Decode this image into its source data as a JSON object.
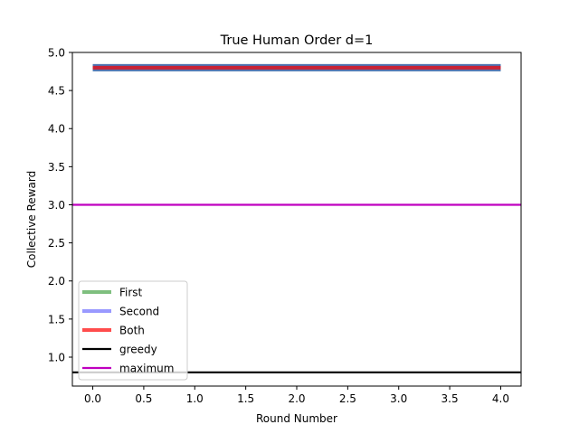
{
  "chart_data": {
    "type": "line",
    "title": "True Human Order d=1",
    "xlabel": "Round Number",
    "ylabel": "Collective Reward",
    "xlim": [
      -0.2,
      4.2
    ],
    "ylim": [
      0.62,
      5.0
    ],
    "xticks": [
      0.0,
      0.5,
      1.0,
      1.5,
      2.0,
      2.5,
      3.0,
      3.5,
      4.0
    ],
    "xtick_labels": [
      "0.0",
      "0.5",
      "1.0",
      "1.5",
      "2.0",
      "2.5",
      "3.0",
      "3.5",
      "4.0"
    ],
    "yticks": [
      1.0,
      1.5,
      2.0,
      2.5,
      3.0,
      3.5,
      4.0,
      4.5,
      5.0
    ],
    "ytick_labels": [
      "1.0",
      "1.5",
      "2.0",
      "2.5",
      "3.0",
      "3.5",
      "4.0",
      "4.5",
      "5.0"
    ],
    "grid": false,
    "legend_position": "lower-left",
    "x": [
      0,
      1,
      2,
      3,
      4
    ],
    "series": [
      {
        "name": "First",
        "values": [
          4.8,
          4.8,
          4.8,
          4.8,
          4.8
        ],
        "color": "#008000",
        "opacity": 0.5
      },
      {
        "name": "Second",
        "values": [
          4.8,
          4.8,
          4.8,
          4.8,
          4.8
        ],
        "color": "#0000ff",
        "opacity": 0.4
      },
      {
        "name": "Both",
        "values": [
          4.8,
          4.8,
          4.8,
          4.8,
          4.8
        ],
        "color": "#ff0000",
        "opacity": 0.7
      }
    ],
    "reference_lines": [
      {
        "name": "greedy",
        "y": 0.8,
        "color": "#000000"
      },
      {
        "name": "maximum",
        "y": 3.0,
        "color": "#bf00bf"
      }
    ]
  }
}
